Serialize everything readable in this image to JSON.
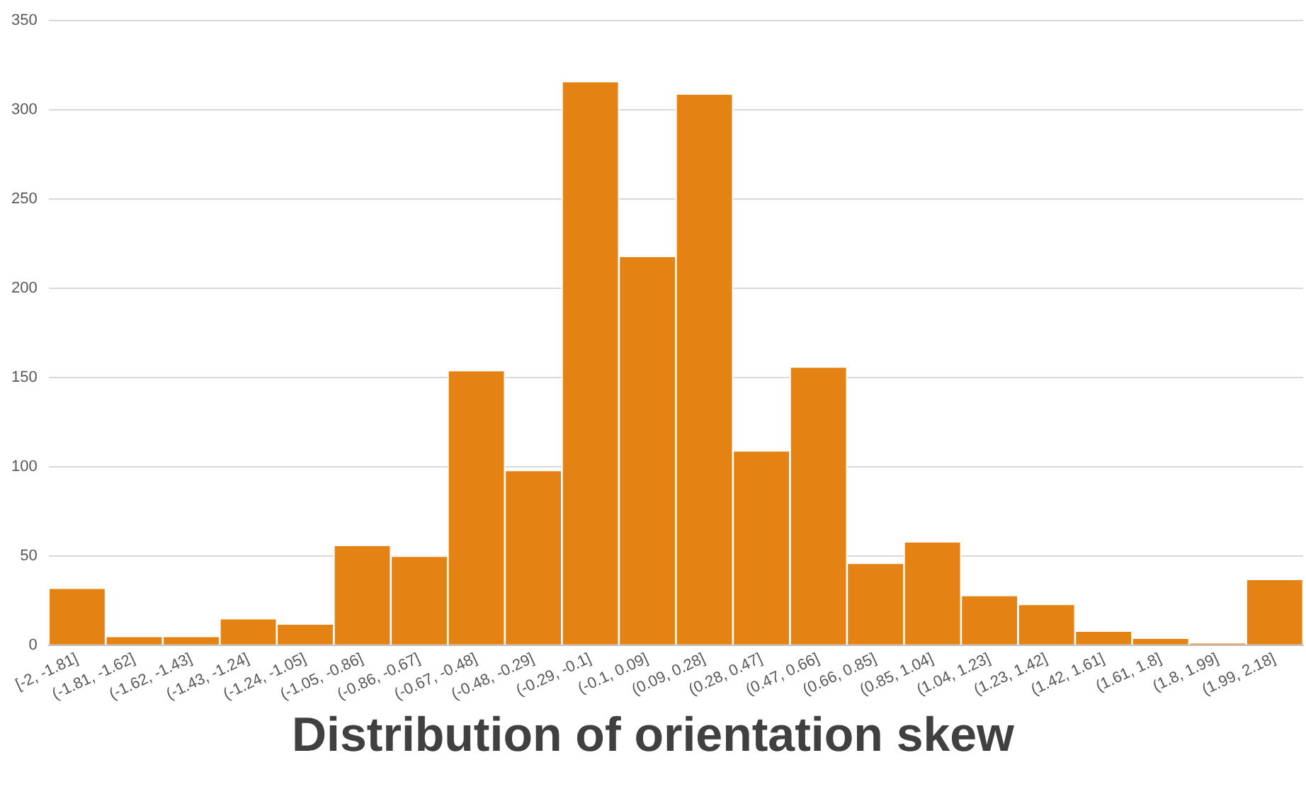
{
  "chart_data": {
    "type": "bar",
    "title": "Distribution of orientation skew",
    "categories": [
      "[-2, -1.81]",
      "(-1.81, -1.62]",
      "(-1.62, -1.43]",
      "(-1.43, -1.24]",
      "(-1.24, -1.05]",
      "(-1.05, -0.86]",
      "(-0.86, -0.67]",
      "(-0.67, -0.48]",
      "(-0.48, -0.29]",
      "(-0.29, -0.1]",
      "(-0.1, 0.09]",
      "(0.09, 0.28]",
      "(0.28, 0.47]",
      "(0.47, 0.66]",
      "(0.66, 0.85]",
      "(0.85, 1.04]",
      "(1.04, 1.23]",
      "(1.23, 1.42]",
      "(1.42, 1.61]",
      "(1.61, 1.8]",
      "(1.8, 1.99]",
      "(1.99, 2.18]"
    ],
    "values": [
      32,
      5,
      5,
      15,
      12,
      56,
      50,
      154,
      98,
      316,
      218,
      309,
      109,
      156,
      46,
      58,
      28,
      23,
      8,
      4,
      1,
      37
    ],
    "color": "#e48313",
    "ylim": [
      0,
      350
    ],
    "yticks": [
      0,
      50,
      100,
      150,
      200,
      250,
      300,
      350
    ],
    "grid": "y"
  }
}
